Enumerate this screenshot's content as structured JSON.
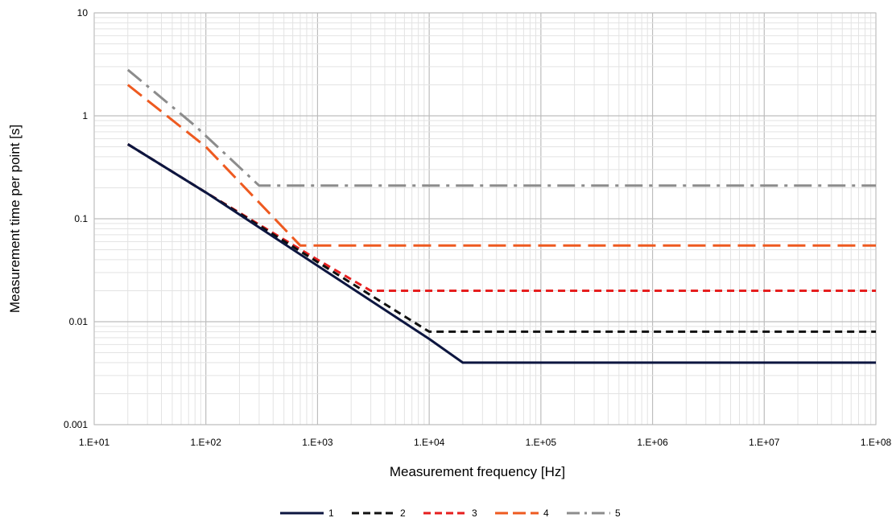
{
  "chart_data": {
    "type": "line",
    "title": "",
    "xlabel": "Measurement frequency [Hz]",
    "ylabel": "Measurement time per point [s]",
    "x_scale": "log",
    "y_scale": "log",
    "xlim": [
      10,
      100000000
    ],
    "ylim": [
      0.001,
      10
    ],
    "grid": true,
    "legend_position": "bottom",
    "x_tick_labels": [
      "1.E+01",
      "1.E+02",
      "1.E+03",
      "1.E+04",
      "1.E+05",
      "1.E+06",
      "1.E+07",
      "1.E+08"
    ],
    "y_tick_labels": [
      "0.001",
      "0.01",
      "0.1",
      "1",
      "10"
    ],
    "series": [
      {
        "name": "1",
        "color": "#0d1640",
        "dash": "solid",
        "points": [
          [
            20,
            0.53
          ],
          [
            100,
            0.18
          ],
          [
            1000,
            0.035
          ],
          [
            10000,
            0.0068
          ],
          [
            20000,
            0.004
          ],
          [
            120000000,
            0.004
          ]
        ]
      },
      {
        "name": "2",
        "color": "#111111",
        "dash": "short-dash",
        "points": [
          [
            20,
            0.53
          ],
          [
            100,
            0.18
          ],
          [
            1000,
            0.038
          ],
          [
            10000,
            0.008
          ],
          [
            120000000,
            0.008
          ]
        ]
      },
      {
        "name": "3",
        "color": "#e61e1e",
        "dash": "short-dash",
        "points": [
          [
            20,
            0.53
          ],
          [
            100,
            0.18
          ],
          [
            1000,
            0.04
          ],
          [
            3000,
            0.02
          ],
          [
            120000000,
            0.02
          ]
        ]
      },
      {
        "name": "4",
        "color": "#ee5a20",
        "dash": "long-dash",
        "points": [
          [
            20,
            2.0
          ],
          [
            100,
            0.5
          ],
          [
            700,
            0.055
          ],
          [
            120000000,
            0.055
          ]
        ]
      },
      {
        "name": "5",
        "color": "#8c8c8c",
        "dash": "dash-dot",
        "points": [
          [
            20,
            2.8
          ],
          [
            80,
            0.8
          ],
          [
            300,
            0.21
          ],
          [
            120000000,
            0.21
          ]
        ]
      }
    ]
  }
}
